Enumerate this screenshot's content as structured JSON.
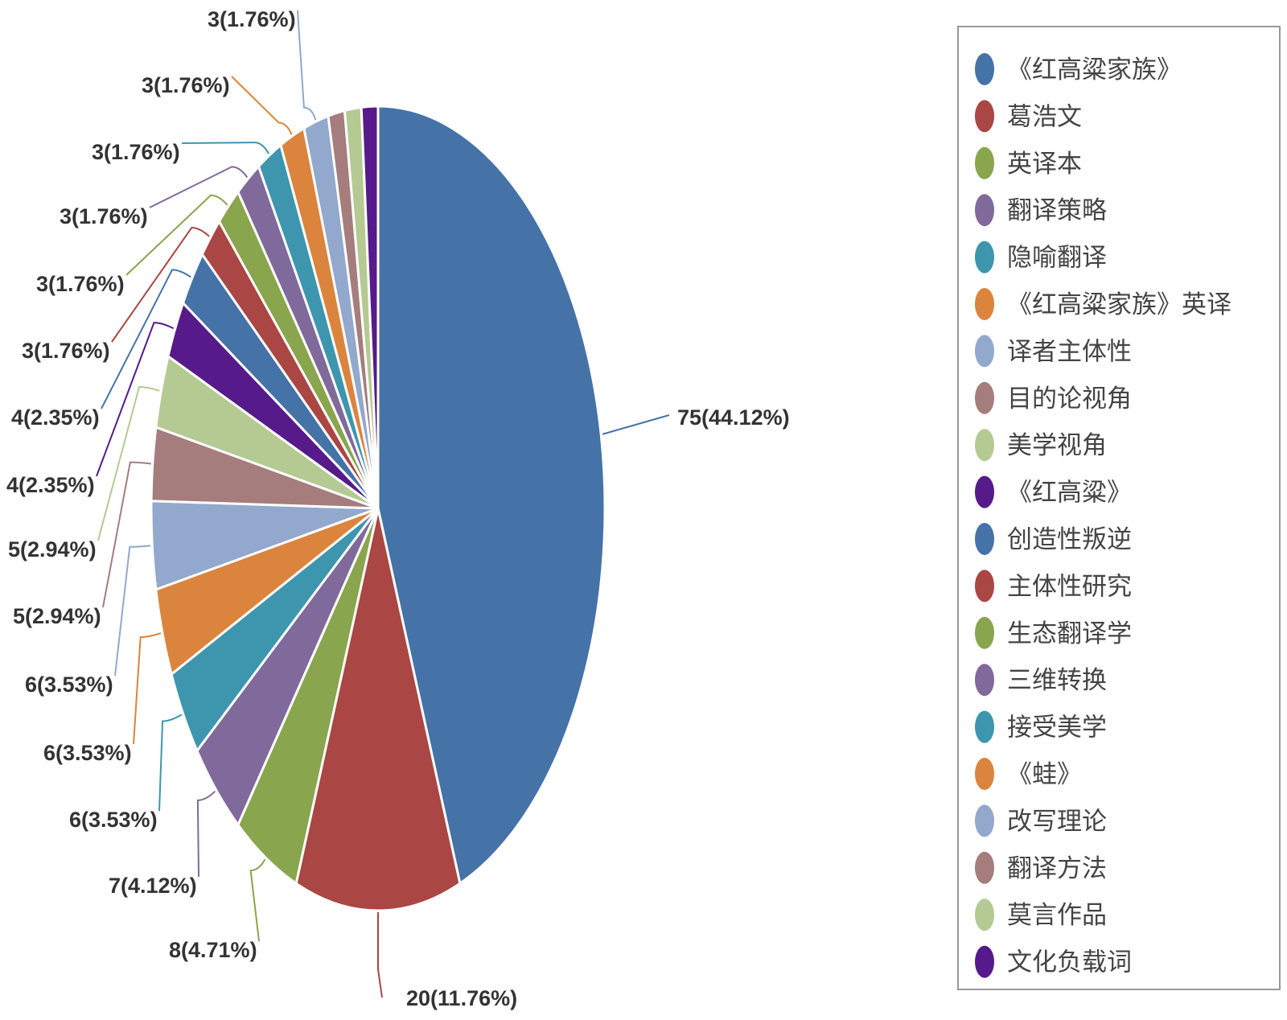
{
  "chart_data": {
    "type": "pie",
    "title": "",
    "legend_position": "right",
    "slices": [
      {
        "name": "《红高粱家族》",
        "value": 75,
        "label": "75(44.12%)",
        "color": "#4572a7"
      },
      {
        "name": "葛浩文",
        "value": 20,
        "label": "20(11.76%)",
        "color": "#aa4643"
      },
      {
        "name": "英译本",
        "value": 8,
        "label": "8(4.71%)",
        "color": "#89a54e"
      },
      {
        "name": "翻译策略",
        "value": 7,
        "label": "7(4.12%)",
        "color": "#80699b"
      },
      {
        "name": "隐喻翻译",
        "value": 6,
        "label": "6(3.53%)",
        "color": "#3d96ae"
      },
      {
        "name": "《红高粱家族》英译",
        "value": 6,
        "label": "6(3.53%)",
        "color": "#db843d"
      },
      {
        "name": "译者主体性",
        "value": 6,
        "label": "6(3.53%)",
        "color": "#92a8cd"
      },
      {
        "name": "目的论视角",
        "value": 5,
        "label": "5(2.94%)",
        "color": "#a47d7c"
      },
      {
        "name": "美学视角",
        "value": 5,
        "label": "5(2.94%)",
        "color": "#b5ca92"
      },
      {
        "name": "《红高粱》",
        "value": 4,
        "label": "4(2.35%)",
        "color": "#561a8b"
      },
      {
        "name": "创造性叛逆",
        "value": 4,
        "label": "4(2.35%)",
        "color": "#4572a7"
      },
      {
        "name": "主体性研究",
        "value": 3,
        "label": "3(1.76%)",
        "color": "#aa4643"
      },
      {
        "name": "生态翻译学",
        "value": 3,
        "label": "3(1.76%)",
        "color": "#89a54e"
      },
      {
        "name": "三维转换",
        "value": 3,
        "label": "3(1.76%)",
        "color": "#80699b"
      },
      {
        "name": "接受美学",
        "value": 3,
        "label": "3(1.76%)",
        "color": "#3d96ae"
      },
      {
        "name": "《蛙》",
        "value": 3,
        "label": "3(1.76%)",
        "color": "#db843d"
      },
      {
        "name": "改写理论",
        "value": 3,
        "label": "3(1.76%)",
        "color": "#92a8cd"
      },
      {
        "name": "翻译方法",
        "value": 2,
        "label": "",
        "color": "#a47d7c"
      },
      {
        "name": "莫言作品",
        "value": 2,
        "label": "",
        "color": "#b5ca92"
      },
      {
        "name": "文化负载词",
        "value": 2,
        "label": "",
        "color": "#561a8b"
      }
    ]
  }
}
